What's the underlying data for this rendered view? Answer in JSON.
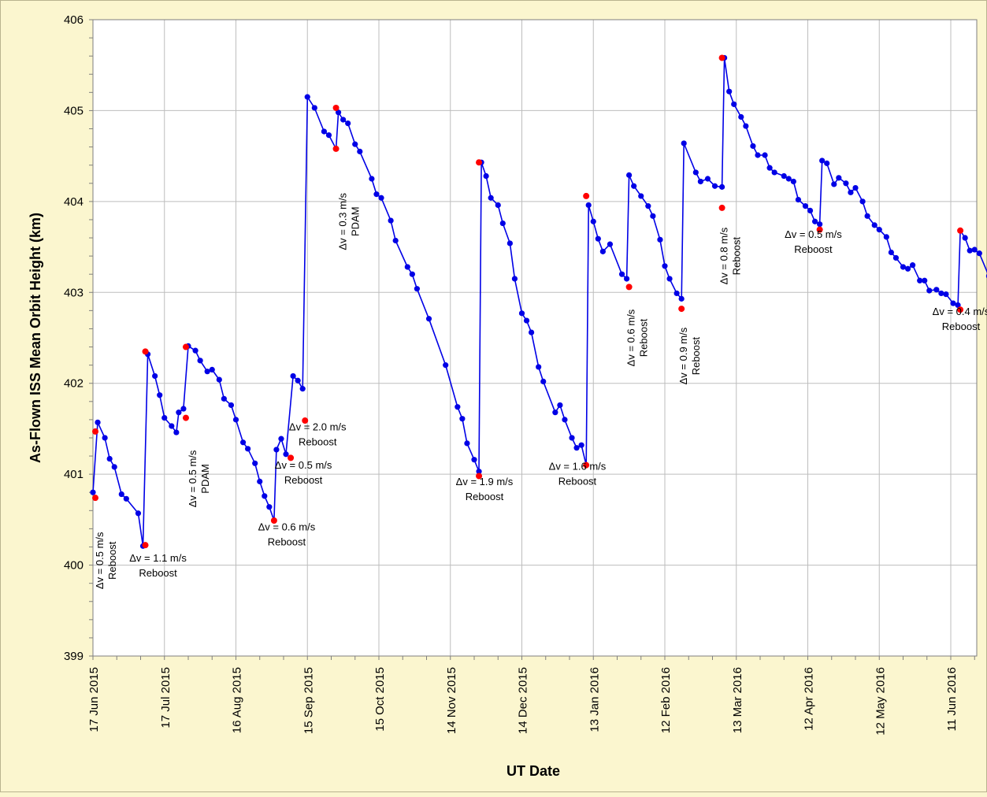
{
  "chart_data": {
    "type": "line",
    "title": "",
    "xlabel": "UT Date",
    "ylabel": "As-Flown ISS Mean Orbit Height (km)",
    "ylim": [
      399,
      406
    ],
    "xlim": [
      "2015-06-17",
      "2016-06-23"
    ],
    "y_ticks": [
      "399",
      "400",
      "401",
      "402",
      "403",
      "404",
      "405",
      "406"
    ],
    "x_ticks": [
      {
        "date": "2015-06-17",
        "label": "17 Jun 2015"
      },
      {
        "date": "2015-07-17",
        "label": "17 Jul 2015"
      },
      {
        "date": "2015-08-16",
        "label": "16 Aug 2015"
      },
      {
        "date": "2015-09-15",
        "label": "15 Sep 2015"
      },
      {
        "date": "2015-10-15",
        "label": "15 Oct 2015"
      },
      {
        "date": "2015-11-14",
        "label": "14 Nov 2015"
      },
      {
        "date": "2015-12-14",
        "label": "14 Dec 2015"
      },
      {
        "date": "2016-01-13",
        "label": "13 Jan 2016"
      },
      {
        "date": "2016-02-12",
        "label": "12 Feb 2016"
      },
      {
        "date": "2016-03-13",
        "label": "13 Mar 2016"
      },
      {
        "date": "2016-04-12",
        "label": "12 Apr 2016"
      },
      {
        "date": "2016-05-12",
        "label": "12 May 2016"
      },
      {
        "date": "2016-06-11",
        "label": "11 Jun 2016"
      }
    ],
    "grid": true,
    "line_color": "#0000e6",
    "event_color": "#ff0000",
    "series": [
      {
        "color": "#0000e6",
        "points": [
          [
            "2015-06-17",
            400.8
          ],
          [
            "2015-06-19",
            401.57
          ],
          [
            "2015-06-22",
            401.4
          ],
          [
            "2015-06-24",
            401.17
          ],
          [
            "2015-06-26",
            401.08
          ],
          [
            "2015-06-29",
            400.78
          ],
          [
            "2015-07-01",
            400.73
          ],
          [
            "2015-07-06",
            400.57
          ],
          [
            "2015-07-08",
            400.21
          ],
          [
            "2015-07-10",
            402.32
          ],
          [
            "2015-07-13",
            402.08
          ],
          [
            "2015-07-15",
            401.87
          ],
          [
            "2015-07-17",
            401.62
          ],
          [
            "2015-07-20",
            401.53
          ],
          [
            "2015-07-22",
            401.46
          ],
          [
            "2015-07-23",
            401.68
          ],
          [
            "2015-07-25",
            401.72
          ],
          [
            "2015-07-27",
            402.41
          ],
          [
            "2015-07-30",
            402.36
          ],
          [
            "2015-08-01",
            402.25
          ],
          [
            "2015-08-04",
            402.13
          ],
          [
            "2015-08-06",
            402.15
          ],
          [
            "2015-08-09",
            402.04
          ],
          [
            "2015-08-11",
            401.83
          ],
          [
            "2015-08-14",
            401.76
          ],
          [
            "2015-08-16",
            401.6
          ],
          [
            "2015-08-19",
            401.35
          ],
          [
            "2015-08-21",
            401.28
          ],
          [
            "2015-08-24",
            401.12
          ],
          [
            "2015-08-26",
            400.92
          ],
          [
            "2015-08-28",
            400.76
          ],
          [
            "2015-08-30",
            400.64
          ],
          [
            "2015-09-01",
            400.49
          ],
          [
            "2015-09-02",
            401.27
          ],
          [
            "2015-09-04",
            401.39
          ],
          [
            "2015-09-06",
            401.22
          ],
          [
            "2015-09-09",
            402.08
          ],
          [
            "2015-09-11",
            402.03
          ],
          [
            "2015-09-13",
            401.94
          ],
          [
            "2015-09-15",
            405.15
          ],
          [
            "2015-09-18",
            405.03
          ],
          [
            "2015-09-22",
            404.77
          ],
          [
            "2015-09-24",
            404.73
          ],
          [
            "2015-09-27",
            404.58
          ],
          [
            "2015-09-28",
            404.98
          ],
          [
            "2015-09-30",
            404.9
          ],
          [
            "2015-10-02",
            404.86
          ],
          [
            "2015-10-05",
            404.63
          ],
          [
            "2015-10-07",
            404.55
          ],
          [
            "2015-10-12",
            404.25
          ],
          [
            "2015-10-14",
            404.08
          ],
          [
            "2015-10-16",
            404.04
          ],
          [
            "2015-10-20",
            403.79
          ],
          [
            "2015-10-22",
            403.57
          ],
          [
            "2015-10-27",
            403.28
          ],
          [
            "2015-10-29",
            403.2
          ],
          [
            "2015-10-31",
            403.04
          ],
          [
            "2015-11-05",
            402.71
          ],
          [
            "2015-11-12",
            402.2
          ],
          [
            "2015-11-17",
            401.74
          ],
          [
            "2015-11-19",
            401.61
          ],
          [
            "2015-11-21",
            401.34
          ],
          [
            "2015-11-24",
            401.16
          ],
          [
            "2015-11-26",
            401.03
          ],
          [
            "2015-11-27",
            404.43
          ],
          [
            "2015-11-29",
            404.28
          ],
          [
            "2015-12-01",
            404.04
          ],
          [
            "2015-12-04",
            403.96
          ],
          [
            "2015-12-06",
            403.76
          ],
          [
            "2015-12-09",
            403.54
          ],
          [
            "2015-12-11",
            403.15
          ],
          [
            "2015-12-14",
            402.77
          ],
          [
            "2015-12-16",
            402.69
          ],
          [
            "2015-12-18",
            402.56
          ],
          [
            "2015-12-21",
            402.18
          ],
          [
            "2015-12-23",
            402.02
          ],
          [
            "2015-12-28",
            401.68
          ],
          [
            "2015-12-30",
            401.76
          ],
          [
            "2016-01-01",
            401.6
          ],
          [
            "2016-01-04",
            401.4
          ],
          [
            "2016-01-06",
            401.29
          ],
          [
            "2016-01-08",
            401.32
          ],
          [
            "2016-01-10",
            401.1
          ],
          [
            "2016-01-11",
            403.96
          ],
          [
            "2016-01-13",
            403.78
          ],
          [
            "2016-01-15",
            403.59
          ],
          [
            "2016-01-17",
            403.45
          ],
          [
            "2016-01-20",
            403.53
          ],
          [
            "2016-01-25",
            403.2
          ],
          [
            "2016-01-27",
            403.15
          ],
          [
            "2016-01-28",
            404.29
          ],
          [
            "2016-01-30",
            404.17
          ],
          [
            "2016-02-02",
            404.06
          ],
          [
            "2016-02-05",
            403.95
          ],
          [
            "2016-02-07",
            403.84
          ],
          [
            "2016-02-10",
            403.58
          ],
          [
            "2016-02-12",
            403.29
          ],
          [
            "2016-02-14",
            403.15
          ],
          [
            "2016-02-17",
            402.99
          ],
          [
            "2016-02-19",
            402.93
          ],
          [
            "2016-02-20",
            404.64
          ],
          [
            "2016-02-25",
            404.32
          ],
          [
            "2016-02-27",
            404.22
          ],
          [
            "2016-03-01",
            404.25
          ],
          [
            "2016-03-04",
            404.17
          ],
          [
            "2016-03-07",
            404.16
          ],
          [
            "2016-03-08",
            405.58
          ],
          [
            "2016-03-10",
            405.21
          ],
          [
            "2016-03-12",
            405.07
          ],
          [
            "2016-03-15",
            404.93
          ],
          [
            "2016-03-17",
            404.83
          ],
          [
            "2016-03-20",
            404.61
          ],
          [
            "2016-03-22",
            404.51
          ],
          [
            "2016-03-25",
            404.51
          ],
          [
            "2016-03-27",
            404.37
          ],
          [
            "2016-03-29",
            404.32
          ],
          [
            "2016-04-02",
            404.28
          ],
          [
            "2016-04-04",
            404.25
          ],
          [
            "2016-04-06",
            404.22
          ],
          [
            "2016-04-08",
            404.02
          ],
          [
            "2016-04-11",
            403.95
          ],
          [
            "2016-04-13",
            403.9
          ],
          [
            "2016-04-15",
            403.78
          ],
          [
            "2016-04-17",
            403.75
          ],
          [
            "2016-04-18",
            404.45
          ],
          [
            "2016-04-20",
            404.42
          ],
          [
            "2016-04-23",
            404.19
          ],
          [
            "2016-04-25",
            404.26
          ],
          [
            "2016-04-28",
            404.2
          ],
          [
            "2016-04-30",
            404.1
          ],
          [
            "2016-05-02",
            404.15
          ],
          [
            "2016-05-05",
            404.0
          ],
          [
            "2016-05-07",
            403.84
          ],
          [
            "2016-05-10",
            403.74
          ],
          [
            "2016-05-12",
            403.69
          ],
          [
            "2016-05-15",
            403.61
          ],
          [
            "2016-05-17",
            403.44
          ],
          [
            "2016-05-19",
            403.38
          ],
          [
            "2016-05-22",
            403.28
          ],
          [
            "2016-05-24",
            403.26
          ],
          [
            "2016-05-26",
            403.3
          ],
          [
            "2016-05-29",
            403.13
          ],
          [
            "2016-05-31",
            403.13
          ],
          [
            "2016-06-02",
            403.02
          ],
          [
            "2016-06-05",
            403.03
          ],
          [
            "2016-06-07",
            402.99
          ],
          [
            "2016-06-09",
            402.98
          ],
          [
            "2016-06-12",
            402.88
          ],
          [
            "2016-06-14",
            402.86
          ],
          [
            "2016-06-15",
            403.68
          ],
          [
            "2016-06-17",
            403.6
          ],
          [
            "2016-06-19",
            403.46
          ],
          [
            "2016-06-21",
            403.47
          ],
          [
            "2016-06-23",
            403.43
          ],
          [
            "2016-06-27",
            403.18
          ]
        ]
      }
    ],
    "events": [
      {
        "date": "2015-06-18",
        "before": 400.74,
        "after": 401.47
      },
      {
        "date": "2015-07-09",
        "before": 400.22,
        "after": 402.35
      },
      {
        "date": "2015-07-26",
        "before": 401.62,
        "after": 402.4
      },
      {
        "date": "2015-09-01",
        "before": 400.49,
        "after": null
      },
      {
        "date": "2015-09-08",
        "before": 401.18,
        "after": null
      },
      {
        "date": "2015-09-14",
        "before": 401.59,
        "after": null
      },
      {
        "date": "2015-09-27",
        "before": 404.58,
        "after": 405.03
      },
      {
        "date": "2015-11-26",
        "before": 400.98,
        "after": 404.43
      },
      {
        "date": "2016-01-10",
        "before": 401.1,
        "after": 404.06
      },
      {
        "date": "2016-01-28",
        "before": 403.06,
        "after": null
      },
      {
        "date": "2016-02-19",
        "before": 402.82,
        "after": null
      },
      {
        "date": "2016-03-07",
        "before": 403.93,
        "after": 405.58
      },
      {
        "date": "2016-04-17",
        "before": 403.69,
        "after": null
      },
      {
        "date": "2016-06-15",
        "before": 402.81,
        "after": 403.68
      }
    ],
    "annotations": [
      {
        "date": "2015-06-18",
        "y": 400.05,
        "rotated": true,
        "lines": [
          "Δv = 0.5 m/s",
          "Reboost"
        ]
      },
      {
        "date": "2015-07-09",
        "y": 400.04,
        "rotated": false,
        "lines": [
          "Δv = 1.1 m/s",
          "Reboost"
        ]
      },
      {
        "date": "2015-07-27",
        "y": 400.95,
        "rotated": true,
        "lines": [
          "Δv = 0.5 m/s",
          "PDAM"
        ]
      },
      {
        "date": "2015-09-01",
        "y": 400.38,
        "rotated": false,
        "lines": [
          "Δv = 0.6 m/s",
          "Reboost"
        ]
      },
      {
        "date": "2015-09-08",
        "y": 401.06,
        "rotated": false,
        "lines": [
          "Δv = 0.5 m/s",
          "Reboost"
        ]
      },
      {
        "date": "2015-09-14",
        "y": 401.48,
        "rotated": false,
        "lines": [
          "Δv = 2.0 m/s",
          "Reboost"
        ]
      },
      {
        "date": "2015-09-28",
        "y": 403.78,
        "rotated": true,
        "lines": [
          "Δv = 0.3 m/s",
          "PDAM"
        ]
      },
      {
        "date": "2015-11-23",
        "y": 400.88,
        "rotated": false,
        "lines": [
          "Δv = 1.9 m/s",
          "Reboost"
        ]
      },
      {
        "date": "2016-01-01",
        "y": 401.05,
        "rotated": false,
        "lines": [
          "Δv = 1.6 m/s",
          "Reboost"
        ]
      },
      {
        "date": "2016-01-27",
        "y": 402.5,
        "rotated": true,
        "lines": [
          "Δv = 0.6 m/s",
          "Reboost"
        ]
      },
      {
        "date": "2016-02-18",
        "y": 402.3,
        "rotated": true,
        "lines": [
          "Δv = 0.9 m/s",
          "Reboost"
        ]
      },
      {
        "date": "2016-03-06",
        "y": 403.4,
        "rotated": true,
        "lines": [
          "Δv = 0.8 m/s",
          "Reboost"
        ]
      },
      {
        "date": "2016-04-09",
        "y": 403.6,
        "rotated": false,
        "lines": [
          "Δv = 0.5 m/s",
          "Reboost"
        ]
      },
      {
        "date": "2016-06-10",
        "y": 402.75,
        "rotated": false,
        "lines": [
          "Δv = 0.4 m/s",
          "Reboost"
        ]
      }
    ]
  }
}
